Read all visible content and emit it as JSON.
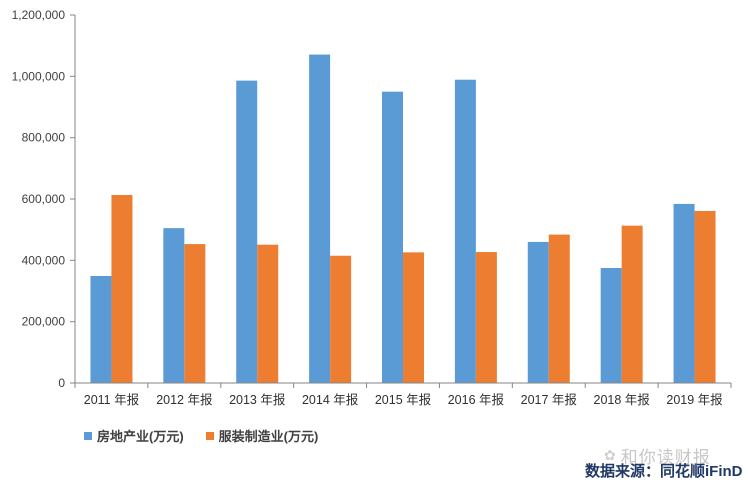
{
  "chart_data": {
    "type": "bar",
    "title": "",
    "xlabel": "",
    "ylabel": "",
    "ylim": [
      0,
      1200000
    ],
    "yticks": [
      0,
      200000,
      400000,
      600000,
      800000,
      1000000,
      1200000
    ],
    "ytick_labels": [
      "0",
      "200,000",
      "400,000",
      "600,000",
      "800,000",
      "1,000,000",
      "1,200,000"
    ],
    "grid": false,
    "legend_position": "bottom-left",
    "categories": [
      "2011 年报",
      "2012 年报",
      "2013 年报",
      "2014 年报",
      "2015 年报",
      "2016 年报",
      "2017 年报",
      "2018 年报",
      "2019 年报"
    ],
    "series": [
      {
        "name": "房地产业(万元)",
        "color": "#5B9BD5",
        "values": [
          349000,
          505000,
          986000,
          1071000,
          950000,
          989000,
          460000,
          375000,
          584000
        ]
      },
      {
        "name": "服装制造业(万元)",
        "color": "#ED7D31",
        "values": [
          613000,
          453000,
          451000,
          415000,
          426000,
          427000,
          484000,
          513000,
          561000
        ]
      }
    ]
  },
  "legend": {
    "items": [
      {
        "label": "房地产业(万元)",
        "color": "#5B9BD5"
      },
      {
        "label": "服装制造业(万元)",
        "color": "#ED7D31"
      }
    ]
  },
  "watermark": {
    "icon": "wechat-icon",
    "text": "和你读财报"
  },
  "source": {
    "text": "数据来源：同花顺iFinD"
  }
}
